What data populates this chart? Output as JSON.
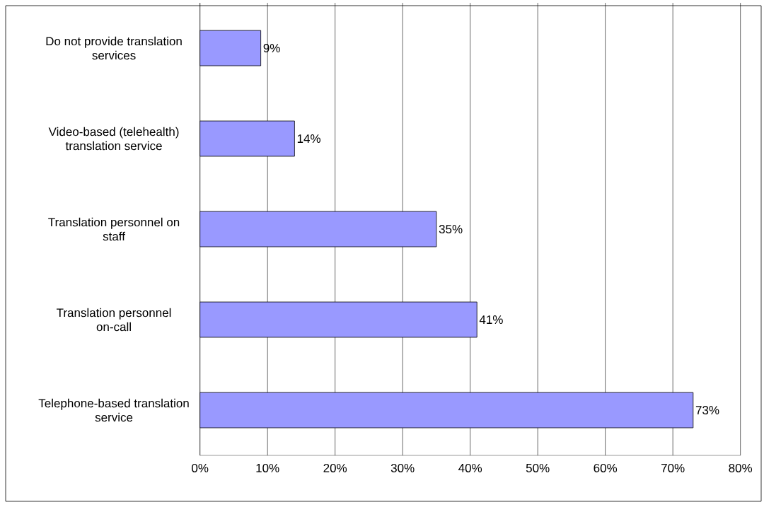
{
  "chart_data": {
    "type": "bar",
    "orientation": "horizontal",
    "categories": [
      "Do not provide translation services",
      "Video-based (telehealth) translation service",
      "Translation personnel on staff",
      "Translation personnel on-call",
      "Telephone-based translation service"
    ],
    "values": [
      9,
      14,
      35,
      41,
      73
    ],
    "value_labels": [
      "9%",
      "14%",
      "35%",
      "41%",
      "73%"
    ],
    "color": "#9999ff",
    "xlim": [
      0,
      80
    ],
    "xticks": [
      {
        "value": 0,
        "label": "0%"
      },
      {
        "value": 10,
        "label": "10%"
      },
      {
        "value": 20,
        "label": "20%"
      },
      {
        "value": 30,
        "label": "30%"
      },
      {
        "value": 40,
        "label": "40%"
      },
      {
        "value": 50,
        "label": "50%"
      },
      {
        "value": 60,
        "label": "60%"
      },
      {
        "value": 70,
        "label": "70%"
      },
      {
        "value": 80,
        "label": "80%"
      }
    ],
    "grid": "x"
  }
}
